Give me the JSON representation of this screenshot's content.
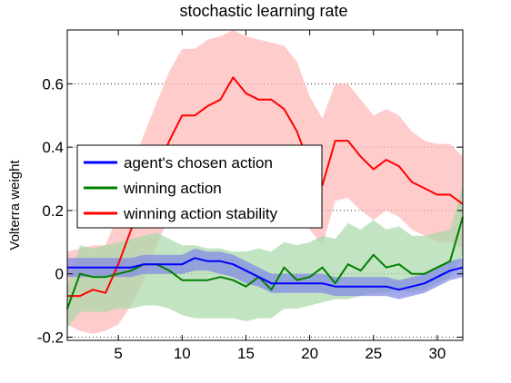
{
  "chart_data": {
    "type": "line",
    "title": "stochastic learning rate",
    "xlabel": "",
    "ylabel": "Volterra weight",
    "xlim": [
      1,
      32
    ],
    "ylim": [
      -0.21,
      0.77
    ],
    "xticks": [
      5,
      10,
      15,
      20,
      25,
      30
    ],
    "yticks": [
      -0.2,
      0,
      0.2,
      0.4,
      0.6
    ],
    "ytick_labels": [
      "-0.2",
      "0",
      "0.2",
      "0.4",
      "0.6"
    ],
    "grid": "dotted horizontal at y ticks",
    "legend_position": "left-middle",
    "x": [
      1,
      2,
      3,
      4,
      5,
      6,
      7,
      8,
      9,
      10,
      11,
      12,
      13,
      14,
      15,
      16,
      17,
      18,
      19,
      20,
      21,
      22,
      23,
      24,
      25,
      26,
      27,
      28,
      29,
      30,
      31,
      32
    ],
    "series": [
      {
        "name": "agent's chosen action",
        "color": "#0000ff",
        "band_color": "#7f86e6",
        "values": [
          0.02,
          0.02,
          0.02,
          0.02,
          0.02,
          0.02,
          0.03,
          0.03,
          0.03,
          0.03,
          0.05,
          0.04,
          0.04,
          0.03,
          0.01,
          -0.01,
          -0.03,
          -0.03,
          -0.03,
          -0.03,
          -0.03,
          -0.04,
          -0.04,
          -0.04,
          -0.04,
          -0.04,
          -0.05,
          -0.04,
          -0.03,
          -0.01,
          0.01,
          0.02
        ],
        "lower": [
          -0.01,
          -0.01,
          -0.01,
          -0.01,
          -0.01,
          -0.01,
          0.0,
          0.0,
          0.0,
          0.0,
          0.01,
          0.01,
          0.0,
          -0.01,
          -0.03,
          -0.04,
          -0.06,
          -0.06,
          -0.06,
          -0.06,
          -0.06,
          -0.07,
          -0.07,
          -0.07,
          -0.07,
          -0.07,
          -0.08,
          -0.07,
          -0.06,
          -0.04,
          -0.02,
          -0.01
        ],
        "upper": [
          0.05,
          0.05,
          0.05,
          0.05,
          0.05,
          0.05,
          0.06,
          0.06,
          0.06,
          0.06,
          0.08,
          0.07,
          0.07,
          0.06,
          0.04,
          0.02,
          0.0,
          0.0,
          0.0,
          0.0,
          0.0,
          -0.01,
          -0.01,
          -0.01,
          -0.01,
          -0.01,
          -0.02,
          -0.01,
          0.0,
          0.02,
          0.04,
          0.05
        ]
      },
      {
        "name": "winning action",
        "color": "#008000",
        "band_color": "#a8d8a8",
        "values": [
          -0.11,
          0.0,
          -0.01,
          -0.01,
          0.0,
          0.01,
          0.03,
          0.03,
          0.01,
          -0.02,
          -0.02,
          -0.02,
          -0.01,
          -0.02,
          -0.04,
          -0.01,
          -0.05,
          0.02,
          -0.02,
          -0.01,
          0.02,
          -0.03,
          0.03,
          0.01,
          0.06,
          0.02,
          0.03,
          0.0,
          0.0,
          0.02,
          0.04,
          0.18
        ],
        "lower": [
          -0.17,
          -0.12,
          -0.12,
          -0.12,
          -0.11,
          -0.11,
          -0.1,
          -0.1,
          -0.11,
          -0.13,
          -0.14,
          -0.14,
          -0.14,
          -0.14,
          -0.15,
          -0.14,
          -0.14,
          -0.11,
          -0.11,
          -0.1,
          -0.09,
          -0.08,
          -0.08,
          -0.07,
          -0.06,
          -0.06,
          -0.05,
          -0.06,
          -0.05,
          -0.03,
          -0.01,
          0.06
        ],
        "upper": [
          -0.04,
          0.09,
          0.08,
          0.09,
          0.1,
          0.11,
          0.12,
          0.13,
          0.11,
          0.09,
          0.09,
          0.08,
          0.08,
          0.07,
          0.07,
          0.08,
          0.07,
          0.1,
          0.09,
          0.1,
          0.12,
          0.11,
          0.16,
          0.14,
          0.17,
          0.14,
          0.15,
          0.12,
          0.12,
          0.13,
          0.14,
          0.28
        ]
      },
      {
        "name": "winning action stability",
        "color": "#ff0000",
        "band_color": "#ffb6b6",
        "values": [
          -0.07,
          -0.07,
          -0.05,
          -0.06,
          0.03,
          0.14,
          0.23,
          0.33,
          0.42,
          0.5,
          0.5,
          0.53,
          0.55,
          0.62,
          0.57,
          0.55,
          0.55,
          0.52,
          0.45,
          0.34,
          0.28,
          0.42,
          0.42,
          0.37,
          0.33,
          0.36,
          0.34,
          0.29,
          0.27,
          0.25,
          0.25,
          0.22
        ],
        "lower": [
          -0.16,
          -0.18,
          -0.19,
          -0.18,
          -0.16,
          -0.1,
          -0.02,
          0.09,
          0.18,
          0.26,
          0.28,
          0.3,
          0.34,
          0.4,
          0.38,
          0.34,
          0.33,
          0.3,
          0.24,
          0.14,
          0.09,
          0.23,
          0.24,
          0.2,
          0.17,
          0.2,
          0.18,
          0.14,
          0.12,
          0.1,
          0.1,
          0.08
        ],
        "upper": [
          0.07,
          0.08,
          0.09,
          0.09,
          0.19,
          0.33,
          0.44,
          0.54,
          0.64,
          0.71,
          0.71,
          0.74,
          0.75,
          0.77,
          0.75,
          0.74,
          0.73,
          0.72,
          0.67,
          0.56,
          0.49,
          0.6,
          0.6,
          0.55,
          0.5,
          0.52,
          0.5,
          0.45,
          0.42,
          0.41,
          0.41,
          0.37
        ]
      }
    ]
  }
}
